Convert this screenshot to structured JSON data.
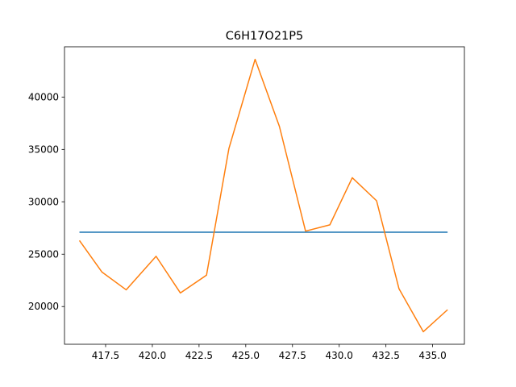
{
  "chart_data": {
    "type": "line",
    "title": "C6H17O21P5",
    "xlabel": "",
    "ylabel": "",
    "xlim": [
      415.3,
      436.7
    ],
    "ylim": [
      16400,
      44800
    ],
    "xticks": [
      417.5,
      420.0,
      422.5,
      425.0,
      427.5,
      430.0,
      432.5,
      435.0
    ],
    "xtick_labels": [
      "417.5",
      "420.0",
      "422.5",
      "425.0",
      "427.5",
      "430.0",
      "432.5",
      "435.0"
    ],
    "yticks": [
      20000,
      25000,
      30000,
      35000,
      40000
    ],
    "ytick_labels": [
      "20000",
      "25000",
      "30000",
      "35000",
      "40000"
    ],
    "grid": false,
    "series": [
      {
        "color": "#1f77b4",
        "x": [
          416.1,
          435.8
        ],
        "y": [
          27100,
          27100
        ]
      },
      {
        "color": "#ff7f0e",
        "x": [
          416.1,
          417.3,
          418.6,
          420.2,
          421.5,
          422.9,
          424.1,
          425.5,
          426.8,
          428.2,
          429.5,
          430.7,
          432.0,
          433.2,
          434.5,
          435.8
        ],
        "y": [
          26300,
          23300,
          21600,
          24800,
          21300,
          23000,
          35100,
          43600,
          37200,
          27200,
          27800,
          32300,
          30100,
          21700,
          17600,
          19700
        ]
      }
    ]
  }
}
